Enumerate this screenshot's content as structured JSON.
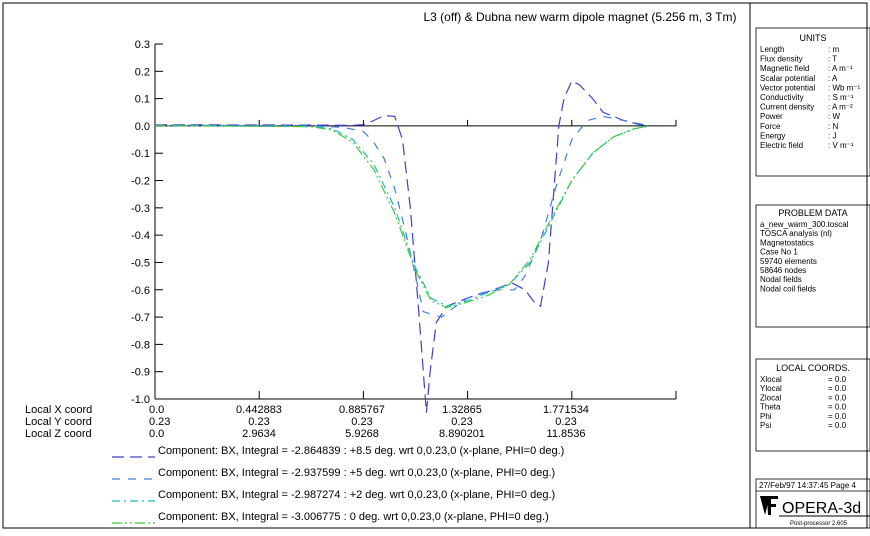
{
  "chart_data": {
    "type": "line",
    "title": "L3 (off) & Dubna new warm dipole magnet (5.256 m, 3 Tm)",
    "ylim": [
      -1.0,
      0.3
    ],
    "xlim": [
      0,
      1
    ],
    "yticks": [
      "0.3",
      "0.2",
      "0.1",
      "0.0",
      "-0.1",
      "-0.2",
      "-0.3",
      "-0.4",
      "-0.5",
      "-0.6",
      "-0.7",
      "-0.8",
      "-0.9",
      "-1.0"
    ],
    "coords": [
      {
        "label": "Local X coord",
        "values": [
          "0.0",
          "0.442883",
          "0.885767",
          "1.32865",
          "1.771534"
        ]
      },
      {
        "label": "Local Y coord",
        "values": [
          "0.23",
          "0.23",
          "0.23",
          "0.23",
          "0.23"
        ]
      },
      {
        "label": "Local Z coord",
        "values": [
          "0.0",
          "2.9634",
          "5.9268",
          "8.890201",
          "11.8536"
        ]
      }
    ],
    "grid": false,
    "series": [
      {
        "name": "Component:  BX, Integral = -2.864839 : +8.5 deg. wrt 0,0.23,0 (x-plane, PHI=0 deg.)",
        "color": "#4040c8",
        "dash": "12 6",
        "points": [
          [
            0,
            0.004
          ],
          [
            0.3,
            0.003
          ],
          [
            0.38,
            0.002
          ],
          [
            0.4,
            0.005
          ],
          [
            0.42,
            0.02
          ],
          [
            0.44,
            0.038
          ],
          [
            0.46,
            0.035
          ],
          [
            0.475,
            -0.05
          ],
          [
            0.49,
            -0.3
          ],
          [
            0.505,
            -0.65
          ],
          [
            0.515,
            -0.9
          ],
          [
            0.521,
            -1.05
          ],
          [
            0.528,
            -0.9
          ],
          [
            0.54,
            -0.72
          ],
          [
            0.56,
            -0.66
          ],
          [
            0.6,
            -0.63
          ],
          [
            0.65,
            -0.6
          ],
          [
            0.685,
            -0.575
          ],
          [
            0.71,
            -0.6
          ],
          [
            0.73,
            -0.65
          ],
          [
            0.74,
            -0.66
          ],
          [
            0.755,
            -0.5
          ],
          [
            0.765,
            -0.25
          ],
          [
            0.775,
            0.0
          ],
          [
            0.785,
            0.1
          ],
          [
            0.8,
            0.165
          ],
          [
            0.815,
            0.15
          ],
          [
            0.84,
            0.1
          ],
          [
            0.86,
            0.05
          ],
          [
            0.9,
            0.02
          ],
          [
            0.93,
            0.005
          ],
          [
            0.95,
            0.0
          ]
        ]
      },
      {
        "name": "Component:  BX, Integral = -2.937599 : +5 deg. wrt 0,0.23,0 (x-plane, PHI=0 deg.)",
        "color": "#4080e0",
        "dash": "8 8",
        "points": [
          [
            0,
            0.003
          ],
          [
            0.3,
            0.0
          ],
          [
            0.36,
            -0.005
          ],
          [
            0.4,
            -0.02
          ],
          [
            0.42,
            -0.06
          ],
          [
            0.44,
            -0.12
          ],
          [
            0.46,
            -0.23
          ],
          [
            0.48,
            -0.38
          ],
          [
            0.5,
            -0.55
          ],
          [
            0.515,
            -0.68
          ],
          [
            0.53,
            -0.69
          ],
          [
            0.55,
            -0.7
          ],
          [
            0.57,
            -0.67
          ],
          [
            0.6,
            -0.63
          ],
          [
            0.63,
            -0.61
          ],
          [
            0.66,
            -0.6
          ],
          [
            0.69,
            -0.6
          ],
          [
            0.71,
            -0.55
          ],
          [
            0.74,
            -0.42
          ],
          [
            0.77,
            -0.22
          ],
          [
            0.8,
            -0.05
          ],
          [
            0.83,
            0.02
          ],
          [
            0.86,
            0.035
          ],
          [
            0.9,
            0.02
          ],
          [
            0.95,
            0.0
          ]
        ]
      },
      {
        "name": "Component:  BX, Integral = -2.987274 : +2 deg. wrt 0,0.23,0 (x-plane, PHI=0 deg.)",
        "color": "#20b8b8",
        "dash": "8 4 2 4",
        "points": [
          [
            0,
            0.002
          ],
          [
            0.3,
            -0.002
          ],
          [
            0.34,
            -0.01
          ],
          [
            0.38,
            -0.05
          ],
          [
            0.42,
            -0.14
          ],
          [
            0.46,
            -0.3
          ],
          [
            0.5,
            -0.52
          ],
          [
            0.53,
            -0.63
          ],
          [
            0.56,
            -0.66
          ],
          [
            0.6,
            -0.64
          ],
          [
            0.64,
            -0.61
          ],
          [
            0.68,
            -0.58
          ],
          [
            0.72,
            -0.5
          ],
          [
            0.76,
            -0.35
          ],
          [
            0.8,
            -0.2
          ],
          [
            0.84,
            -0.1
          ],
          [
            0.88,
            -0.04
          ],
          [
            0.92,
            -0.01
          ],
          [
            0.95,
            0.0
          ]
        ]
      },
      {
        "name": "Component:  BX, Integral = -3.006775 : 0 deg. wrt 0,0.23,0 (x-plane, PHI=0 deg.)",
        "color": "#40c840",
        "dash": "10 3 2 3 2 3",
        "points": [
          [
            0,
            0.001
          ],
          [
            0.3,
            -0.003
          ],
          [
            0.34,
            -0.015
          ],
          [
            0.38,
            -0.06
          ],
          [
            0.42,
            -0.16
          ],
          [
            0.46,
            -0.32
          ],
          [
            0.5,
            -0.53
          ],
          [
            0.53,
            -0.64
          ],
          [
            0.56,
            -0.665
          ],
          [
            0.6,
            -0.645
          ],
          [
            0.64,
            -0.62
          ],
          [
            0.68,
            -0.58
          ],
          [
            0.72,
            -0.49
          ],
          [
            0.76,
            -0.34
          ],
          [
            0.8,
            -0.2
          ],
          [
            0.84,
            -0.1
          ],
          [
            0.88,
            -0.04
          ],
          [
            0.92,
            -0.01
          ],
          [
            0.95,
            0.0
          ]
        ]
      }
    ]
  },
  "panels": {
    "units": {
      "title": "UNITS",
      "rows": [
        {
          "k": "Length",
          "v": ": m"
        },
        {
          "k": "Flux density",
          "v": ": T"
        },
        {
          "k": "Magnetic field",
          "v": ": A m⁻¹"
        },
        {
          "k": "Scalar potential",
          "v": ": A"
        },
        {
          "k": "Vector potential",
          "v": ": Wb m⁻¹"
        },
        {
          "k": "Conductivity",
          "v": ": S m⁻¹"
        },
        {
          "k": "Current density",
          "v": ": A m⁻²"
        },
        {
          "k": "Power",
          "v": ": W"
        },
        {
          "k": "Force",
          "v": ": N"
        },
        {
          "k": "Energy",
          "v": ": J"
        },
        {
          "k": "Electric field",
          "v": ": V m⁻¹"
        }
      ]
    },
    "problem": {
      "title": "PROBLEM DATA",
      "lines": [
        "a_new_warm_300.toscal",
        "TOSCA analysis (nl)",
        "Magnetostatics",
        "Case No  1",
        "  59740 elements",
        "  58646 nodes",
        "Nodal fields",
        "Nodal coil fields"
      ]
    },
    "local": {
      "title": "LOCAL COORDS.",
      "rows": [
        {
          "k": "Xlocal",
          "v": "= 0.0"
        },
        {
          "k": "Ylocal",
          "v": "= 0.0"
        },
        {
          "k": "Zlocal",
          "v": "= 0.0"
        },
        {
          "k": "Theta",
          "v": "= 0.0"
        },
        {
          "k": "Phi",
          "v": "= 0.0"
        },
        {
          "k": "Psi",
          "v": "= 0.0"
        }
      ]
    },
    "footer": {
      "stamp": "27/Feb/97 14:37:45 Page 4",
      "logo": "OPERA-3d",
      "sub": "Post-processor 2.605"
    }
  }
}
